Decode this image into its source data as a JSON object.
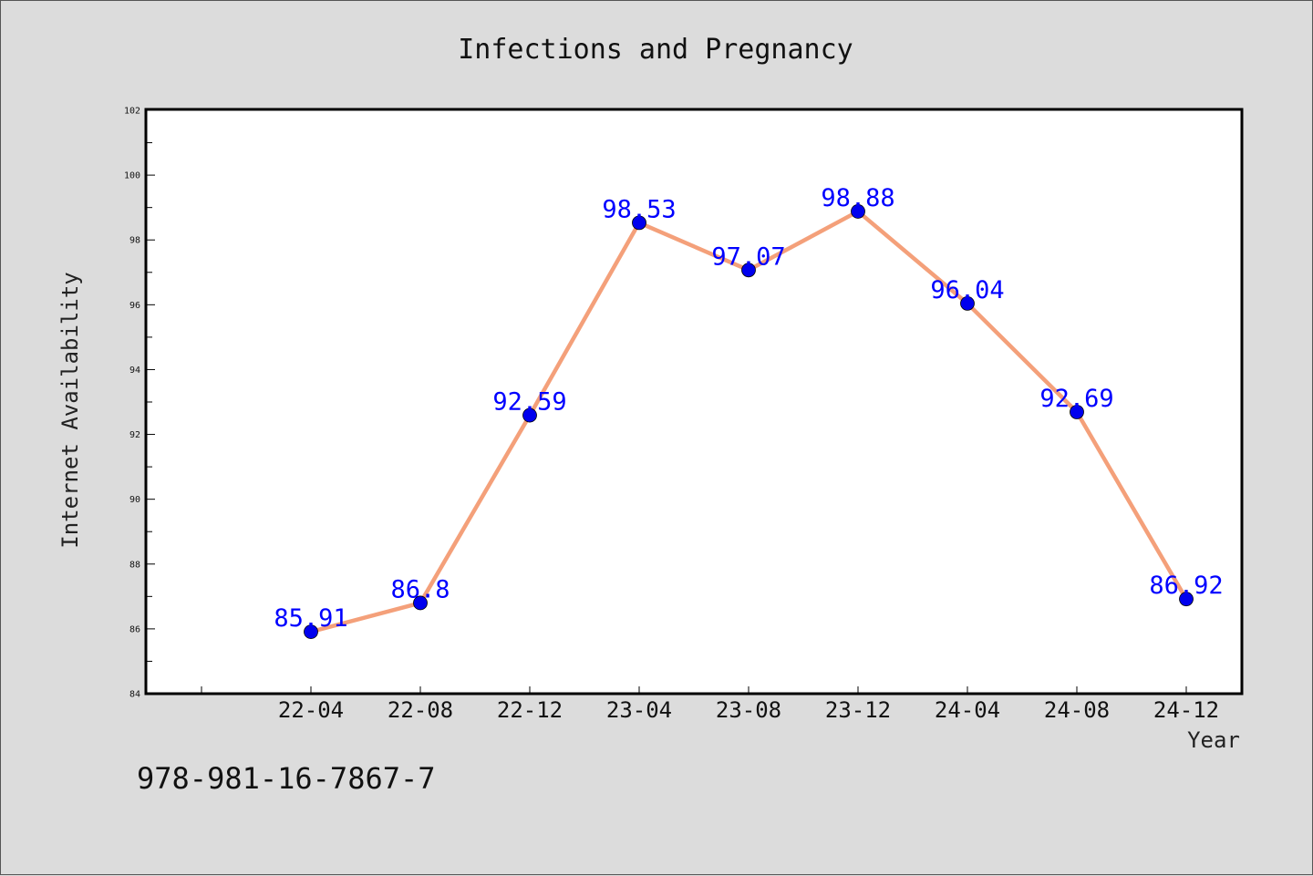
{
  "chart_data": {
    "type": "line",
    "title": "Infections and Pregnancy",
    "xlabel": "Year",
    "ylabel": "Internet Availability",
    "categories": [
      "22-04",
      "22-08",
      "22-12",
      "23-04",
      "23-08",
      "23-12",
      "24-04",
      "24-08",
      "24-12"
    ],
    "series": [
      {
        "values": [
          85.91,
          86.8,
          92.59,
          98.53,
          97.07,
          98.88,
          96.04,
          92.69,
          86.92
        ],
        "data_labels": [
          "85.91",
          "86.8",
          "92.59",
          "98.53",
          "97.07",
          "98.88",
          "96.04",
          "92.69",
          "86.92"
        ],
        "line_color": "#f4a07a",
        "marker_color": "#0000ee"
      }
    ],
    "ylim": [
      84,
      102
    ],
    "yticks": [
      "84",
      "86",
      "88",
      "90",
      "92",
      "94",
      "96",
      "98",
      "100",
      "102"
    ],
    "grid": false,
    "legend": "none"
  },
  "footer_text": "978-981-16-7867-7"
}
